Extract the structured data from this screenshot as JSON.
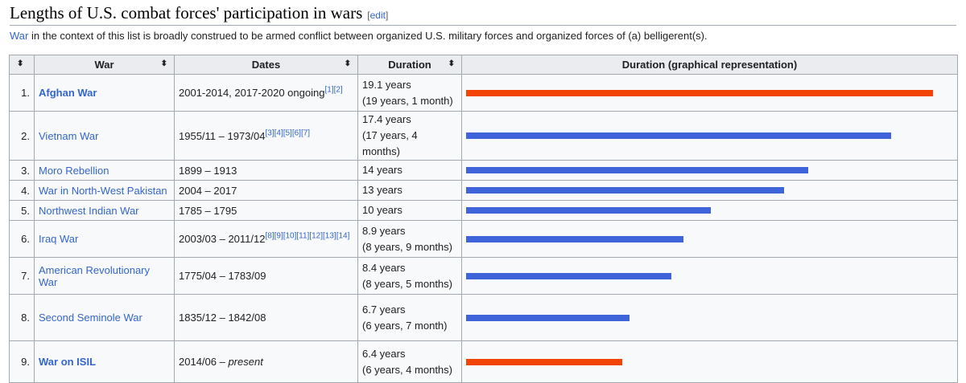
{
  "section": {
    "title": "Lengths of U.S. combat forces' participation in wars",
    "edit_open": "[",
    "edit_label": "edit",
    "edit_close": "]"
  },
  "intro": {
    "link": "War",
    "text": " in the context of this list is broadly construed to be armed conflict between organized U.S. military forces and organized forces of (a) belligerent(s)."
  },
  "table": {
    "headers": {
      "war": "War",
      "dates": "Dates",
      "duration": "Duration",
      "graph": "Duration (graphical representation)"
    },
    "sort_icon": "⬍",
    "rows": [
      {
        "num": "1.",
        "war": "Afghan War",
        "bold": true,
        "dates": "2001-2014,  2017-2020 ongoing",
        "refs": "[1][2]",
        "years": "19.1 years",
        "detail": "(19 years, 1 month)",
        "value": 19.1,
        "color": "#f24405"
      },
      {
        "num": "2.",
        "war": "Vietnam War",
        "bold": false,
        "dates": "1955/11 – 1973/04",
        "refs": "[3][4][5][6][7]",
        "years": "17.4 years",
        "detail": "(17 years, 4 months)",
        "value": 17.4,
        "color": "#3f63d8"
      },
      {
        "num": "3.",
        "war": "Moro Rebellion",
        "bold": false,
        "dates": "1899 – 1913",
        "refs": "",
        "years": "14 years",
        "detail": "",
        "value": 14,
        "color": "#3f63d8"
      },
      {
        "num": "4.",
        "war": "War in North-West Pakistan",
        "bold": false,
        "dates": "2004 – 2017",
        "refs": "",
        "years": "13 years",
        "detail": "",
        "value": 13,
        "color": "#3f63d8"
      },
      {
        "num": "5.",
        "war": "Northwest Indian War",
        "bold": false,
        "dates": "1785 – 1795",
        "refs": "",
        "years": "10 years",
        "detail": "",
        "value": 10,
        "color": "#3f63d8"
      },
      {
        "num": "6.",
        "war": "Iraq War",
        "bold": false,
        "dates": "2003/03 – 2011/12",
        "refs": "[8][9][10][11][12][13][14]",
        "years": "8.9 years",
        "detail": "(8 years, 9 months)",
        "value": 8.9,
        "color": "#3f63d8"
      },
      {
        "num": "7.",
        "war": "American Revolutionary War",
        "bold": false,
        "dates": "1775/04 – 1783/09",
        "refs": "",
        "years": "8.4 years",
        "detail": "(8 years, 5 months)",
        "value": 8.4,
        "color": "#3f63d8"
      },
      {
        "num": "8.",
        "war": "Second Seminole War",
        "bold": false,
        "dates": "1835/12 – 1842/08",
        "refs": "",
        "years": "6.7 years",
        "detail": "(6 years, 7 month)",
        "value": 6.7,
        "color": "#3f63d8"
      },
      {
        "num": "9.",
        "war": "War on ISIL",
        "bold": true,
        "dates": "2014/06 – ",
        "present": "present",
        "refs": "",
        "years": "6.4 years",
        "detail": "(6 years, 4 months)",
        "value": 6.4,
        "color": "#f24405"
      }
    ]
  }
}
